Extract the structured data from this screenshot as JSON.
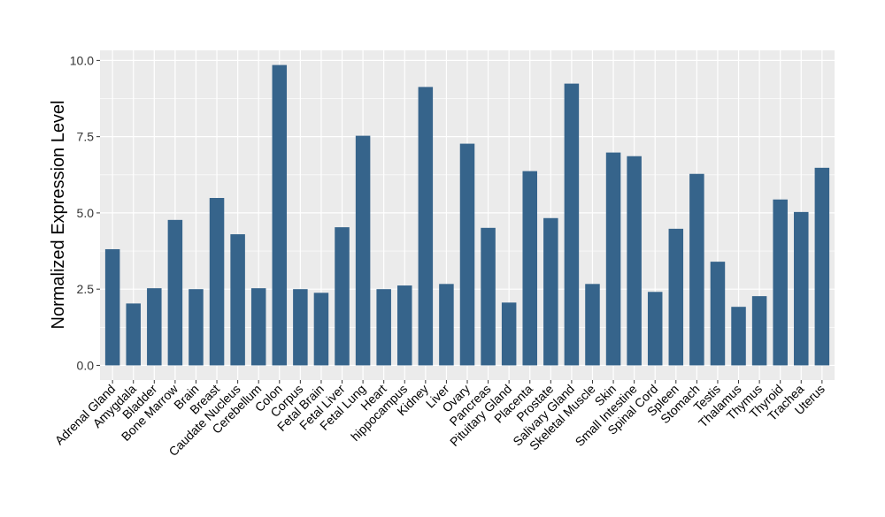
{
  "chart_data": {
    "type": "bar",
    "title": "",
    "xlabel": "",
    "ylabel": "Normalized Expression Level",
    "ylim": [
      -0.48,
      10.33
    ],
    "yticks": [
      "0.0",
      "2.5",
      "5.0",
      "7.5",
      "10.0"
    ],
    "ytick_values": [
      0,
      2.5,
      5,
      7.5,
      10
    ],
    "grid": true,
    "bar_color": "#36648B",
    "panel_color": "#EBEBEB",
    "categories": [
      "Adrenal Gland",
      "Amygdala",
      "Bladder",
      "Bone Marrow",
      "Brain",
      "Breast",
      "Caudate Nucleus",
      "Cerebellum",
      "Colon",
      "Corpus",
      "Fetal Brain",
      "Fetal Liver",
      "Fetal Lung",
      "Heart",
      "hippocampus",
      "Kidney",
      "Liver",
      "Ovary",
      "Pancreas",
      "Pituitary Gland",
      "Placenta",
      "Prostate",
      "Salivary Gland",
      "Skeletal Muscle",
      "Skin",
      "Small Intestine",
      "Spinal Cord",
      "Spleen",
      "Stomach",
      "Testis",
      "Thalamus",
      "Thymus",
      "Thyroid",
      "Trachea",
      "Uterus"
    ],
    "values": [
      3.81,
      2.03,
      2.53,
      4.77,
      2.5,
      5.49,
      4.3,
      2.53,
      9.85,
      2.5,
      2.38,
      4.53,
      7.53,
      2.5,
      2.62,
      9.13,
      2.67,
      7.27,
      4.51,
      2.06,
      6.37,
      4.83,
      9.24,
      2.67,
      6.98,
      6.86,
      2.41,
      4.48,
      6.28,
      3.4,
      1.92,
      2.27,
      5.44,
      5.03,
      6.48
    ]
  }
}
